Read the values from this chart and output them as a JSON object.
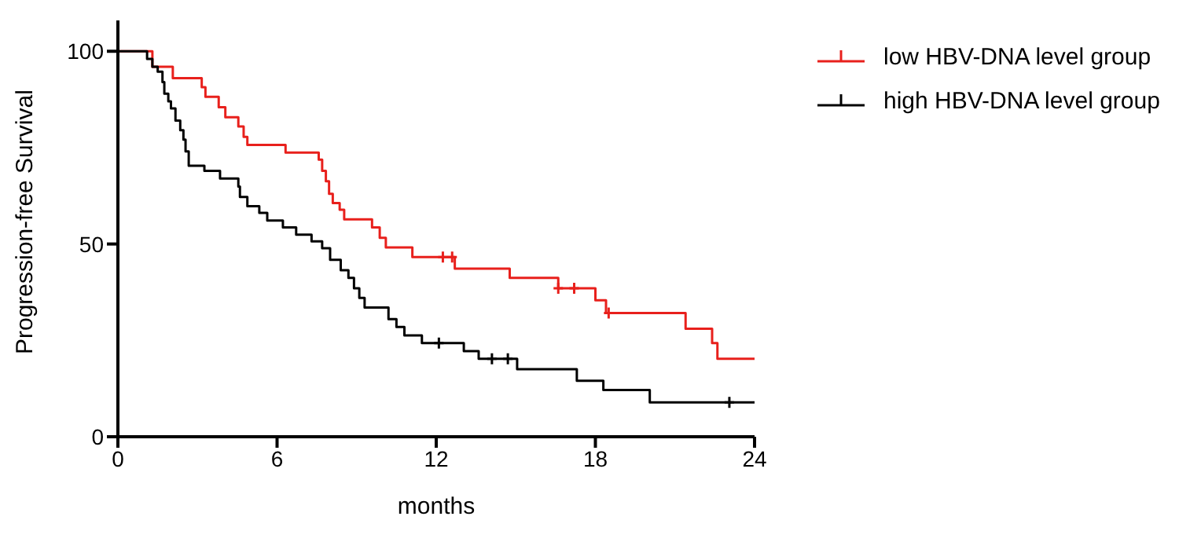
{
  "chart_data": {
    "type": "step",
    "xlabel": "months",
    "ylabel": "Progression-free Survival",
    "xlim": [
      0,
      24
    ],
    "xticks": [
      0,
      6,
      12,
      18,
      24
    ],
    "ylim": [
      0,
      108
    ],
    "yticks": [
      0,
      50,
      100
    ],
    "grid": false,
    "legend": "top right",
    "line_style": "solid",
    "series": [
      {
        "name": "low HBV-DNA level group",
        "color": "#e8201c",
        "marker": "none",
        "x": [
          0,
          1.3,
          2.07,
          3.16,
          3.3,
          3.8,
          4.05,
          4.54,
          4.74,
          4.88,
          6.32,
          7.57,
          7.7,
          7.84,
          7.96,
          8.1,
          8.36,
          8.53,
          9.58,
          9.87,
          10.1,
          11.1,
          12.7,
          14.77,
          16.6,
          18.0,
          18.4,
          21.4,
          22.4,
          22.6,
          24
        ],
        "values": [
          100,
          96,
          93,
          90.7,
          88.2,
          85.5,
          82.9,
          80.5,
          77.8,
          75.7,
          73.7,
          71.9,
          69,
          66.3,
          63,
          60.6,
          58.9,
          56.4,
          54.3,
          51.6,
          49.1,
          46.6,
          43.6,
          41.2,
          38.5,
          35.4,
          32.1,
          28,
          24.3,
          20.2,
          20.2
        ]
      },
      {
        "name": "high HBV-DNA level group",
        "color": "#000000",
        "marker": "none",
        "x": [
          0,
          1.1,
          1.3,
          1.5,
          1.68,
          1.75,
          1.9,
          2.0,
          2.17,
          2.35,
          2.47,
          2.55,
          2.67,
          3.26,
          3.85,
          4.54,
          4.6,
          4.88,
          5.33,
          5.63,
          6.22,
          6.72,
          7.3,
          7.7,
          8.0,
          8.4,
          8.69,
          8.9,
          9.1,
          9.3,
          10.2,
          10.5,
          10.8,
          11.46,
          13.04,
          13.6,
          15.05,
          17.3,
          18.3,
          20.05,
          24
        ],
        "values": [
          100,
          98,
          96,
          94.7,
          92,
          89,
          87,
          85.2,
          82,
          79.5,
          77.1,
          74,
          70.3,
          69,
          67,
          64.9,
          62.2,
          59.8,
          58.1,
          56.1,
          54.3,
          52.4,
          50.7,
          48.9,
          45.9,
          43.2,
          41.2,
          38.5,
          36,
          33.5,
          30.5,
          28.5,
          26.3,
          24.3,
          22.2,
          20.2,
          17.5,
          14.5,
          12.1,
          8.9,
          8.9
        ]
      },
      {
        "type": "scatter",
        "color": "#e8201c",
        "marker": "cross",
        "x": [
          12.25,
          12.6,
          16.6,
          17.2,
          18.5
        ],
        "values": [
          46.6,
          46.6,
          38.5,
          38.5,
          32.1
        ]
      },
      {
        "type": "scatter",
        "color": "#000000",
        "marker": "cross",
        "x": [
          12.1,
          14.1,
          14.7,
          23.05
        ],
        "values": [
          24.3,
          20.2,
          20.2,
          8.9
        ]
      }
    ]
  }
}
